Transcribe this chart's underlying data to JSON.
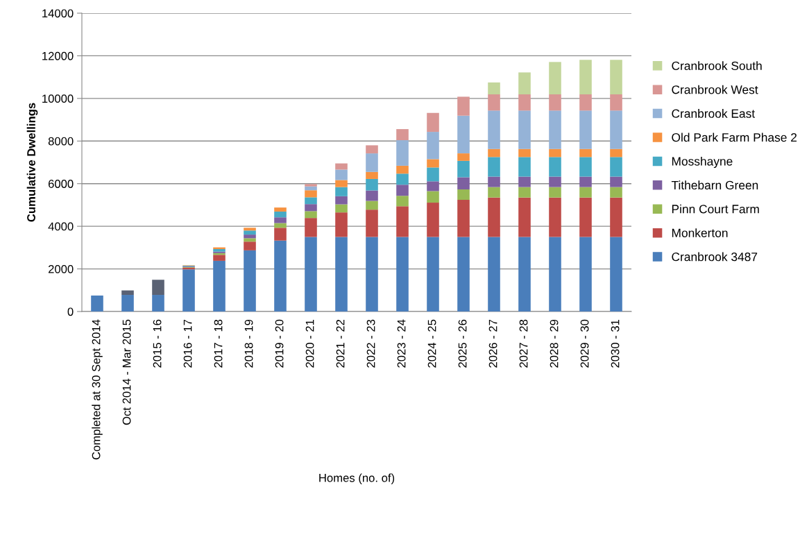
{
  "chart_data": {
    "type": "bar",
    "stacked": true,
    "ylabel": "Cumulative Dwellings",
    "xlabel": "Homes (no. of)",
    "categories": [
      "Completed at 30 Sept 2014",
      "Oct 2014 - Mar 2015",
      "2015 - 16",
      "2016 - 17",
      "2017 - 18",
      "2018 - 19",
      "2019 - 20",
      "2020 - 21",
      "2021 - 22",
      "2022 - 23",
      "2023 - 24",
      "2024 - 25",
      "2025 - 26",
      "2026 - 27",
      "2027 - 28",
      "2028 - 29",
      "2029 - 30",
      "2030 - 31"
    ],
    "series": [
      {
        "name": "Cranbrook 3487",
        "color": "#4a7ebb",
        "values": [
          750,
          780,
          780,
          1980,
          2380,
          2870,
          3330,
          3500,
          3500,
          3500,
          3500,
          3500,
          3500,
          3500,
          3500,
          3500,
          3500,
          3500
        ]
      },
      {
        "color": "#5a6274",
        "values": [
          0,
          210,
          710,
          0,
          0,
          0,
          0,
          0,
          0,
          0,
          0,
          0,
          0,
          0,
          0,
          0,
          0,
          0
        ]
      },
      {
        "name": "Monkerton",
        "color": "#be4b48",
        "values": [
          0,
          0,
          0,
          80,
          280,
          410,
          600,
          890,
          1150,
          1280,
          1440,
          1610,
          1740,
          1850,
          1850,
          1850,
          1850,
          1850
        ]
      },
      {
        "name": "Pinn Court Farm",
        "color": "#98b954",
        "values": [
          0,
          0,
          0,
          30,
          80,
          160,
          220,
          320,
          380,
          410,
          490,
          540,
          490,
          490,
          490,
          490,
          490,
          490
        ]
      },
      {
        "name": "Tithebarn Green",
        "color": "#7d60a0",
        "values": [
          0,
          0,
          0,
          30,
          70,
          170,
          270,
          330,
          380,
          490,
          520,
          460,
          570,
          490,
          490,
          490,
          490,
          490
        ]
      },
      {
        "name": "Mosshayne",
        "color": "#46aac5",
        "values": [
          0,
          0,
          0,
          30,
          120,
          190,
          270,
          320,
          430,
          540,
          520,
          650,
          770,
          920,
          920,
          920,
          920,
          920
        ]
      },
      {
        "name": "Old Park Farm Phase 2",
        "color": "#f69240",
        "values": [
          0,
          0,
          0,
          20,
          80,
          130,
          190,
          330,
          330,
          330,
          370,
          390,
          350,
          380,
          380,
          380,
          380,
          380
        ]
      },
      {
        "name": "Cranbrook East",
        "color": "#95b3d7",
        "values": [
          0,
          0,
          0,
          0,
          0,
          0,
          0,
          180,
          490,
          870,
          1200,
          1280,
          1770,
          1800,
          1800,
          1800,
          1800,
          1800
        ]
      },
      {
        "name": "Cranbrook West",
        "color": "#d99694",
        "values": [
          0,
          0,
          0,
          0,
          0,
          0,
          0,
          110,
          290,
          380,
          520,
          890,
          890,
          760,
          760,
          760,
          760,
          760
        ]
      },
      {
        "name": "Cranbrook South",
        "color": "#c3d69b",
        "values": [
          0,
          0,
          0,
          0,
          0,
          0,
          0,
          0,
          0,
          0,
          0,
          0,
          0,
          560,
          1030,
          1520,
          1620,
          1620
        ]
      }
    ],
    "ylim": [
      0,
      14000
    ],
    "yticks": [
      0,
      2000,
      4000,
      6000,
      8000,
      10000,
      12000,
      14000
    ],
    "grid": "y",
    "legend": "right"
  }
}
